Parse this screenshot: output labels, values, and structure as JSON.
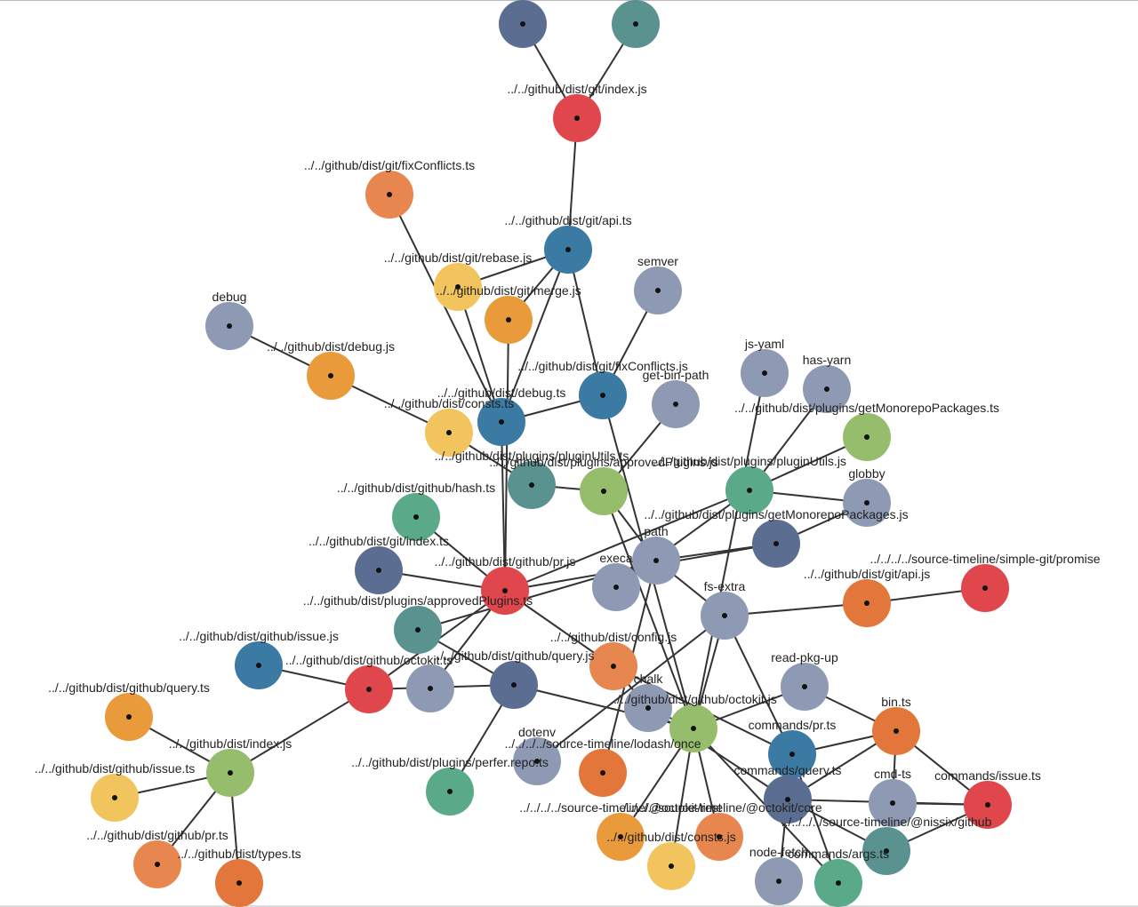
{
  "nodes": [
    "../../github/dist/git/index.js",
    "../../github/dist/git/fixConflicts.ts",
    "../../github/dist/git/api.ts",
    "../../github/dist/git/rebase.js",
    "../../github/dist/git/merge.js",
    "semver",
    "debug",
    "../../github/dist/debug.js",
    "../../github/dist/git/fixConflicts.js",
    "js-yaml",
    "has-yarn",
    "get-bin-path",
    "../../github/dist/debug.ts",
    "../../github/dist/consts.ts",
    "../../github/dist/plugins/getMonorepoPackages.ts",
    "../../github/dist/plugins/pluginUtils.ts",
    "../../github/dist/plugins/approvedPlugins.js",
    "../../github/dist/plugins/pluginUtils.js",
    "globby",
    "../../github/dist/github/hash.ts",
    "../../github/dist/plugins/getMonorepoPackages.js",
    "path",
    "../../github/dist/git/index.ts",
    "execa",
    "../../github/dist/github/pr.js",
    "../../../../source-timeline/simple-git/promise",
    "../../github/dist/git/api.js",
    "../../github/dist/plugins/approvedPlugins.ts",
    "fs-extra",
    "../../github/dist/github/issue.js",
    "../../github/dist/config.js",
    "../../github/dist/github/octokit.ts",
    "../../github/dist/github/query.js",
    "chalk",
    "read-pkg-up",
    "../../github/dist/github/query.ts",
    "../../github/dist/github/octokit.js",
    "bin.ts",
    "commands/pr.ts",
    "../../github/dist/index.js",
    "dotenv",
    "../../../../source-timeline/lodash/once",
    "../../github/dist/github/issue.ts",
    "../../github/dist/plugins/perfer.repo.ts",
    "commands/query.ts",
    "cmd-ts",
    "commands/issue.ts",
    "../../../../source-timeline/@octokit/rest",
    "../../github/dist/consts.js",
    "../../../../source-timeline/@octokit/core",
    "../../../../source-timeline/@nissix/github",
    "node-fetch",
    "commands/args.ts",
    "../../github/dist/github/pr.ts",
    "../../github/dist/types.ts"
  ]
}
